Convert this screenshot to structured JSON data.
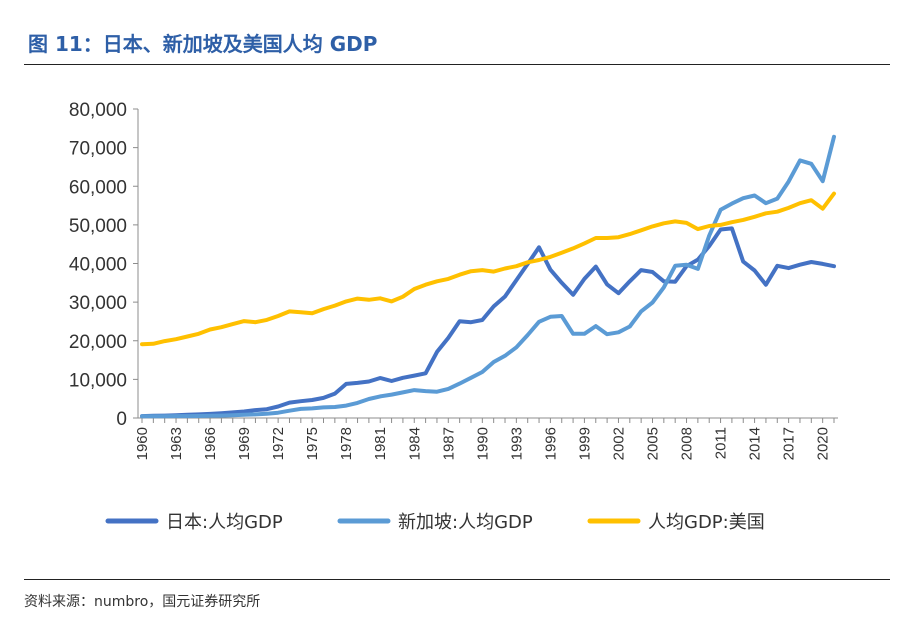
{
  "figure": {
    "title": "图 11：日本、新加坡及美国人均 GDP",
    "source": "资料来源：numbro，国元证券研究所"
  },
  "chart_data": {
    "type": "line",
    "title": "",
    "xlabel": "",
    "ylabel": "",
    "ylim": [
      0,
      80000
    ],
    "yticks": [
      0,
      10000,
      20000,
      30000,
      40000,
      50000,
      60000,
      70000,
      80000
    ],
    "ytick_labels": [
      "0",
      "10,000",
      "20,000",
      "30,000",
      "40,000",
      "50,000",
      "60,000",
      "70,000",
      "80,000"
    ],
    "xtick_labels": [
      "1960",
      "1963",
      "1966",
      "1969",
      "1972",
      "1975",
      "1978",
      "1981",
      "1984",
      "1987",
      "1990",
      "1993",
      "1996",
      "1999",
      "2002",
      "2005",
      "2008",
      "2011",
      "2014",
      "2017",
      "2020"
    ],
    "grid": false,
    "legend": "bottom",
    "x": [
      1960,
      1961,
      1962,
      1963,
      1964,
      1965,
      1966,
      1967,
      1968,
      1969,
      1970,
      1971,
      1972,
      1973,
      1974,
      1975,
      1976,
      1977,
      1978,
      1979,
      1980,
      1981,
      1982,
      1983,
      1984,
      1985,
      1986,
      1987,
      1988,
      1989,
      1990,
      1991,
      1992,
      1993,
      1994,
      1995,
      1996,
      1997,
      1998,
      1999,
      2000,
      2001,
      2002,
      2003,
      2004,
      2005,
      2006,
      2007,
      2008,
      2009,
      2010,
      2011,
      2012,
      2013,
      2014,
      2015,
      2016,
      2017,
      2018,
      2019,
      2020,
      2021
    ],
    "series": [
      {
        "name": "日本:人均GDP",
        "color": "#4472c4",
        "values": [
          480,
          560,
          630,
          720,
          840,
          920,
          1060,
          1230,
          1450,
          1670,
          2040,
          2270,
          2970,
          3990,
          4350,
          4670,
          5200,
          6330,
          8820,
          9100,
          9460,
          10360,
          9580,
          10420,
          10980,
          11580,
          17110,
          20750,
          25050,
          24800,
          25360,
          28900,
          31450,
          35700,
          39900,
          44200,
          38400,
          35000,
          31900,
          36000,
          39200,
          34600,
          32300,
          35400,
          38300,
          37800,
          35400,
          35300,
          39300,
          41000,
          44500,
          48800,
          49100,
          40500,
          38200,
          34500,
          39400,
          38800,
          39700,
          40400,
          39900,
          39300
        ]
      },
      {
        "name": "新加坡:人均GDP",
        "color": "#5b9bd5",
        "values": [
          430,
          450,
          470,
          500,
          490,
          520,
          570,
          630,
          710,
          820,
          930,
          1080,
          1380,
          1880,
          2350,
          2490,
          2750,
          2850,
          3200,
          3900,
          4930,
          5600,
          6050,
          6630,
          7230,
          6960,
          6800,
          7540,
          8900,
          10400,
          11900,
          14500,
          16100,
          18300,
          21500,
          24900,
          26200,
          26400,
          21800,
          21800,
          23800,
          21700,
          22200,
          23700,
          27600,
          29900,
          33800,
          39400,
          39700,
          38600,
          47200,
          53900,
          55500,
          56900,
          57600,
          55600,
          56800,
          61200,
          66700,
          65800,
          61300,
          72800
        ]
      },
      {
        "name": "人均GDP:美国",
        "color": "#ffc000",
        "values": [
          19100,
          19200,
          19900,
          20400,
          21100,
          21800,
          22900,
          23500,
          24300,
          25100,
          24800,
          25400,
          26400,
          27600,
          27400,
          27100,
          28200,
          29100,
          30200,
          30900,
          30600,
          31000,
          30200,
          31400,
          33400,
          34500,
          35400,
          36000,
          37100,
          38000,
          38300,
          37900,
          38700,
          39300,
          40300,
          40900,
          41700,
          42800,
          43900,
          45200,
          46600,
          46600,
          46800,
          47600,
          48600,
          49600,
          50400,
          50900,
          50500,
          48900,
          49700,
          50000,
          50700,
          51300,
          52100,
          53000,
          53400,
          54400,
          55600,
          56400,
          54200,
          58100
        ]
      }
    ]
  }
}
